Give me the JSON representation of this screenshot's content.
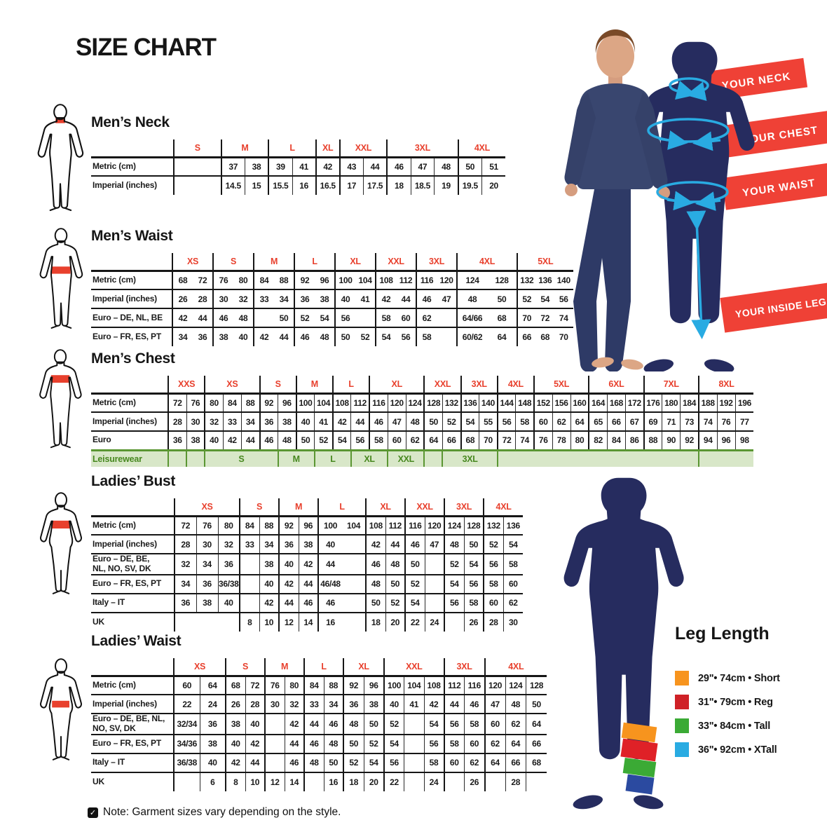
{
  "page": {
    "title": "SIZE CHART",
    "note": "Note: Garment sizes vary depending on the style.",
    "note_check": "✓"
  },
  "banners": [
    {
      "label": "YOUR NECK"
    },
    {
      "label": "YOUR CHEST"
    },
    {
      "label": "YOUR WAIST"
    },
    {
      "label": "YOUR INSIDE LEG"
    }
  ],
  "leg_length": {
    "title": "Leg Length",
    "items": [
      {
        "color": "#f7941e",
        "label": "29\"• 74cm • Short"
      },
      {
        "color": "#cf2127",
        "label": "31\"• 79cm • Reg"
      },
      {
        "color": "#3baa35",
        "label": "33\"• 84cm • Tall"
      },
      {
        "color": "#29abe2",
        "label": "36\"• 92cm • XTall"
      }
    ]
  },
  "tables": [
    {
      "name": "mens-neck",
      "title": "Men’s Neck",
      "groups": [
        {
          "label": "S",
          "span": 2
        },
        {
          "label": "M",
          "span": 2
        },
        {
          "label": "L",
          "span": 2
        },
        {
          "label": "XL",
          "span": 1
        },
        {
          "label": "XXL",
          "span": 2
        },
        {
          "label": "3XL",
          "span": 3
        },
        {
          "label": "4XL",
          "span": 2
        }
      ],
      "rows": [
        {
          "label": "Metric (cm)",
          "cells": [
            {
              "v": "",
              "s": 2
            },
            "37",
            "38",
            "39",
            "41",
            "42",
            "43",
            "44",
            "46",
            "47",
            "48",
            "50",
            "51"
          ]
        },
        {
          "label": "Imperial (inches)",
          "cells": [
            {
              "v": "",
              "s": 2
            },
            "14.5",
            "15",
            "15.5",
            "16",
            "16.5",
            "17",
            "17.5",
            "18",
            "18.5",
            "19",
            "19.5",
            "20"
          ]
        }
      ]
    },
    {
      "name": "mens-waist",
      "title": "Men’s Waist",
      "groups": [
        {
          "label": "XS",
          "span": 2
        },
        {
          "label": "S",
          "span": 2
        },
        {
          "label": "M",
          "span": 2
        },
        {
          "label": "L",
          "span": 2
        },
        {
          "label": "XL",
          "span": 2
        },
        {
          "label": "XXL",
          "span": 2
        },
        {
          "label": "3XL",
          "span": 2
        },
        {
          "label": "4XL",
          "span": 2
        },
        {
          "label": "5XL",
          "span": 3
        }
      ],
      "rows": [
        {
          "label": "Metric (cm)",
          "cells": [
            "68",
            "72",
            "76",
            "80",
            "84",
            "88",
            "92",
            "96",
            "100",
            "104",
            "108",
            "112",
            "116",
            "120",
            "124",
            "128",
            "132",
            "136",
            "140"
          ]
        },
        {
          "label": "Imperial (inches)",
          "cells": [
            "26",
            "28",
            "30",
            "32",
            "33",
            "34",
            "36",
            "38",
            "40",
            "41",
            "42",
            "44",
            "46",
            "47",
            "48",
            "50",
            "52",
            "54",
            "56"
          ]
        },
        {
          "label": "Euro – DE, NL, BE",
          "cells": [
            "42",
            "44",
            "46",
            "48",
            "",
            "50",
            "52",
            "54",
            "56",
            "",
            "58",
            "60",
            "62",
            "",
            "64/66",
            "68",
            "70",
            "72",
            "74"
          ]
        },
        {
          "label": "Euro – FR, ES, PT",
          "cells": [
            "34",
            "36",
            "38",
            "40",
            "42",
            "44",
            "46",
            "48",
            "50",
            "52",
            "54",
            "56",
            "58",
            "",
            "60/62",
            "64",
            "66",
            "68",
            "70"
          ]
        }
      ]
    },
    {
      "name": "mens-chest",
      "title": "Men’s Chest",
      "groups": [
        {
          "label": "XXS",
          "span": 2
        },
        {
          "label": "XS",
          "span": 3
        },
        {
          "label": "S",
          "span": 2
        },
        {
          "label": "M",
          "span": 2
        },
        {
          "label": "L",
          "span": 2
        },
        {
          "label": "XL",
          "span": 3
        },
        {
          "label": "XXL",
          "span": 2
        },
        {
          "label": "3XL",
          "span": 2
        },
        {
          "label": "4XL",
          "span": 2
        },
        {
          "label": "5XL",
          "span": 3
        },
        {
          "label": "6XL",
          "span": 3
        },
        {
          "label": "7XL",
          "span": 3
        },
        {
          "label": "8XL",
          "span": 3
        }
      ],
      "rows": [
        {
          "label": "Metric (cm)",
          "cells": [
            "72",
            "76",
            "80",
            "84",
            "88",
            "92",
            "96",
            "100",
            "104",
            "108",
            "112",
            "116",
            "120",
            "124",
            "128",
            "132",
            "136",
            "140",
            "144",
            "148",
            "152",
            "156",
            "160",
            "164",
            "168",
            "172",
            "176",
            "180",
            "184",
            "188",
            "192",
            "196"
          ]
        },
        {
          "label": "Imperial (inches)",
          "cells": [
            "28",
            "30",
            "32",
            "33",
            "34",
            "36",
            "38",
            "40",
            "41",
            "42",
            "44",
            "46",
            "47",
            "48",
            "50",
            "52",
            "54",
            "55",
            "56",
            "58",
            "60",
            "62",
            "64",
            "65",
            "66",
            "67",
            "69",
            "71",
            "73",
            "74",
            "76",
            "77"
          ]
        },
        {
          "label": "Euro",
          "cells": [
            "36",
            "38",
            "40",
            "42",
            "44",
            "46",
            "48",
            "50",
            "52",
            "54",
            "56",
            "58",
            "60",
            "62",
            "64",
            "66",
            "68",
            "70",
            "72",
            "74",
            "76",
            "78",
            "80",
            "82",
            "84",
            "86",
            "88",
            "90",
            "92",
            "94",
            "96",
            "98"
          ]
        },
        {
          "label": "Leisurewear",
          "leisure": true,
          "cells": [
            "",
            "",
            {
              "v": "S",
              "s": 4
            },
            {
              "v": "M",
              "s": 2
            },
            {
              "v": "L",
              "s": 2
            },
            {
              "v": "XL",
              "s": 2
            },
            {
              "v": "XXL",
              "s": 2
            },
            "",
            {
              "v": "3XL",
              "s": 3
            },
            {
              "v": "",
              "s": 11
            },
            {
              "v": "",
              "s": 3
            }
          ]
        }
      ]
    },
    {
      "name": "ladies-bust",
      "title": "Ladies’ Bust",
      "groups": [
        {
          "label": "XS",
          "span": 3
        },
        {
          "label": "S",
          "span": 2
        },
        {
          "label": "M",
          "span": 2
        },
        {
          "label": "L",
          "span": 2
        },
        {
          "label": "XL",
          "span": 2
        },
        {
          "label": "XXL",
          "span": 2
        },
        {
          "label": "3XL",
          "span": 2
        },
        {
          "label": "4XL",
          "span": 2
        }
      ],
      "rows": [
        {
          "label": "Metric (cm)",
          "cells": [
            "72",
            "76",
            "80",
            "84",
            "88",
            "92",
            "96",
            "100",
            "104",
            "108",
            "112",
            "116",
            "120",
            "124",
            "128",
            "132",
            "136"
          ]
        },
        {
          "label": "Imperial (inches)",
          "cells": [
            "28",
            "30",
            "32",
            "33",
            "34",
            "36",
            "38",
            "40",
            "",
            "42",
            "44",
            "46",
            "47",
            "48",
            "50",
            "52",
            "54"
          ]
        },
        {
          "label": "Euro –  DE, BE,\nNL, NO, SV, DK",
          "cells": [
            "32",
            "34",
            "36",
            "",
            "38",
            "40",
            "42",
            "44",
            "",
            "46",
            "48",
            "50",
            "",
            "52",
            "54",
            "56",
            "58"
          ]
        },
        {
          "label": "Euro – FR, ES, PT",
          "cells": [
            "34",
            "36",
            "36/38",
            "",
            "40",
            "42",
            "44",
            "46/48",
            "",
            "48",
            "50",
            "52",
            "",
            "54",
            "56",
            "58",
            "60"
          ]
        },
        {
          "label": "Italy – IT",
          "cells": [
            "36",
            "38",
            "40",
            "",
            "42",
            "44",
            "46",
            "46",
            "",
            "50",
            "52",
            "54",
            "",
            "56",
            "58",
            "60",
            "62"
          ]
        },
        {
          "label": "UK",
          "cells": [
            {
              "v": "",
              "s": 3
            },
            "8",
            "10",
            "12",
            "14",
            "16",
            "",
            "18",
            "20",
            "22",
            "24",
            "",
            "26",
            "28",
            "30"
          ]
        }
      ]
    },
    {
      "name": "ladies-waist",
      "title": "Ladies’ Waist",
      "groups": [
        {
          "label": "XS",
          "span": 2
        },
        {
          "label": "S",
          "span": 2
        },
        {
          "label": "M",
          "span": 2
        },
        {
          "label": "L",
          "span": 2
        },
        {
          "label": "XL",
          "span": 2
        },
        {
          "label": "XXL",
          "span": 3
        },
        {
          "label": "3XL",
          "span": 2
        },
        {
          "label": "4XL",
          "span": 3
        }
      ],
      "rows": [
        {
          "label": "Metric (cm)",
          "cells": [
            "60",
            "64",
            "68",
            "72",
            "76",
            "80",
            "84",
            "88",
            "92",
            "96",
            "100",
            "104",
            "108",
            "112",
            "116",
            "120",
            "124",
            "128"
          ]
        },
        {
          "label": "Imperial (inches)",
          "cells": [
            "22",
            "24",
            "26",
            "28",
            "30",
            "32",
            "33",
            "34",
            "36",
            "38",
            "40",
            "41",
            "42",
            "44",
            "46",
            "47",
            "48",
            "50"
          ]
        },
        {
          "label": "Euro – DE, BE, NL,\nNO, SV, DK",
          "cells": [
            "32/34",
            "36",
            "38",
            "40",
            "",
            "42",
            "44",
            "46",
            "48",
            "50",
            "52",
            "",
            "54",
            "56",
            "58",
            "60",
            "62",
            "64"
          ]
        },
        {
          "label": "Euro – FR, ES, PT",
          "cells": [
            "34/36",
            "38",
            "40",
            "42",
            "",
            "44",
            "46",
            "48",
            "50",
            "52",
            "54",
            "",
            "56",
            "58",
            "60",
            "62",
            "64",
            "66"
          ]
        },
        {
          "label": "Italy – IT",
          "cells": [
            "36/38",
            "40",
            "42",
            "44",
            "",
            "46",
            "48",
            "50",
            "52",
            "54",
            "56",
            "",
            "58",
            "60",
            "62",
            "64",
            "66",
            "68"
          ]
        },
        {
          "label": "UK",
          "cells": [
            "",
            "6",
            "8",
            "10",
            "12",
            "14",
            "",
            "16",
            "18",
            "20",
            "22",
            "",
            "24",
            "",
            "26",
            "",
            "28",
            ""
          ]
        }
      ]
    }
  ]
}
